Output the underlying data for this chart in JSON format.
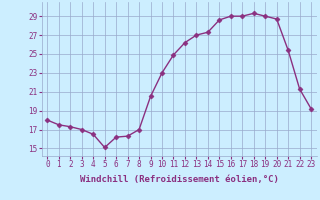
{
  "x": [
    0,
    1,
    2,
    3,
    4,
    5,
    6,
    7,
    8,
    9,
    10,
    11,
    12,
    13,
    14,
    15,
    16,
    17,
    18,
    19,
    20,
    21,
    22,
    23
  ],
  "y": [
    18.0,
    17.5,
    17.3,
    17.0,
    16.5,
    15.1,
    16.2,
    16.3,
    17.0,
    20.5,
    23.0,
    24.9,
    26.2,
    27.0,
    27.3,
    28.6,
    29.0,
    29.0,
    29.3,
    29.0,
    28.7,
    25.4,
    21.3,
    19.2
  ],
  "line_color": "#8B3080",
  "marker": "D",
  "markersize": 2.5,
  "linewidth": 1.0,
  "xlabel": "Windchill (Refroidissement éolien,°C)",
  "xlabel_fontsize": 6.5,
  "ylabel_ticks": [
    15,
    17,
    19,
    21,
    23,
    25,
    27,
    29
  ],
  "xtick_labels": [
    "0",
    "1",
    "2",
    "3",
    "4",
    "5",
    "6",
    "7",
    "8",
    "9",
    "10",
    "11",
    "12",
    "13",
    "14",
    "15",
    "16",
    "17",
    "18",
    "19",
    "20",
    "21",
    "22",
    "23"
  ],
  "ylim": [
    14.2,
    30.5
  ],
  "xlim": [
    -0.5,
    23.5
  ],
  "bg_color": "#cceeff",
  "grid_color": "#99aacc",
  "tick_color": "#8B3080",
  "tick_fontsize": 5.5
}
